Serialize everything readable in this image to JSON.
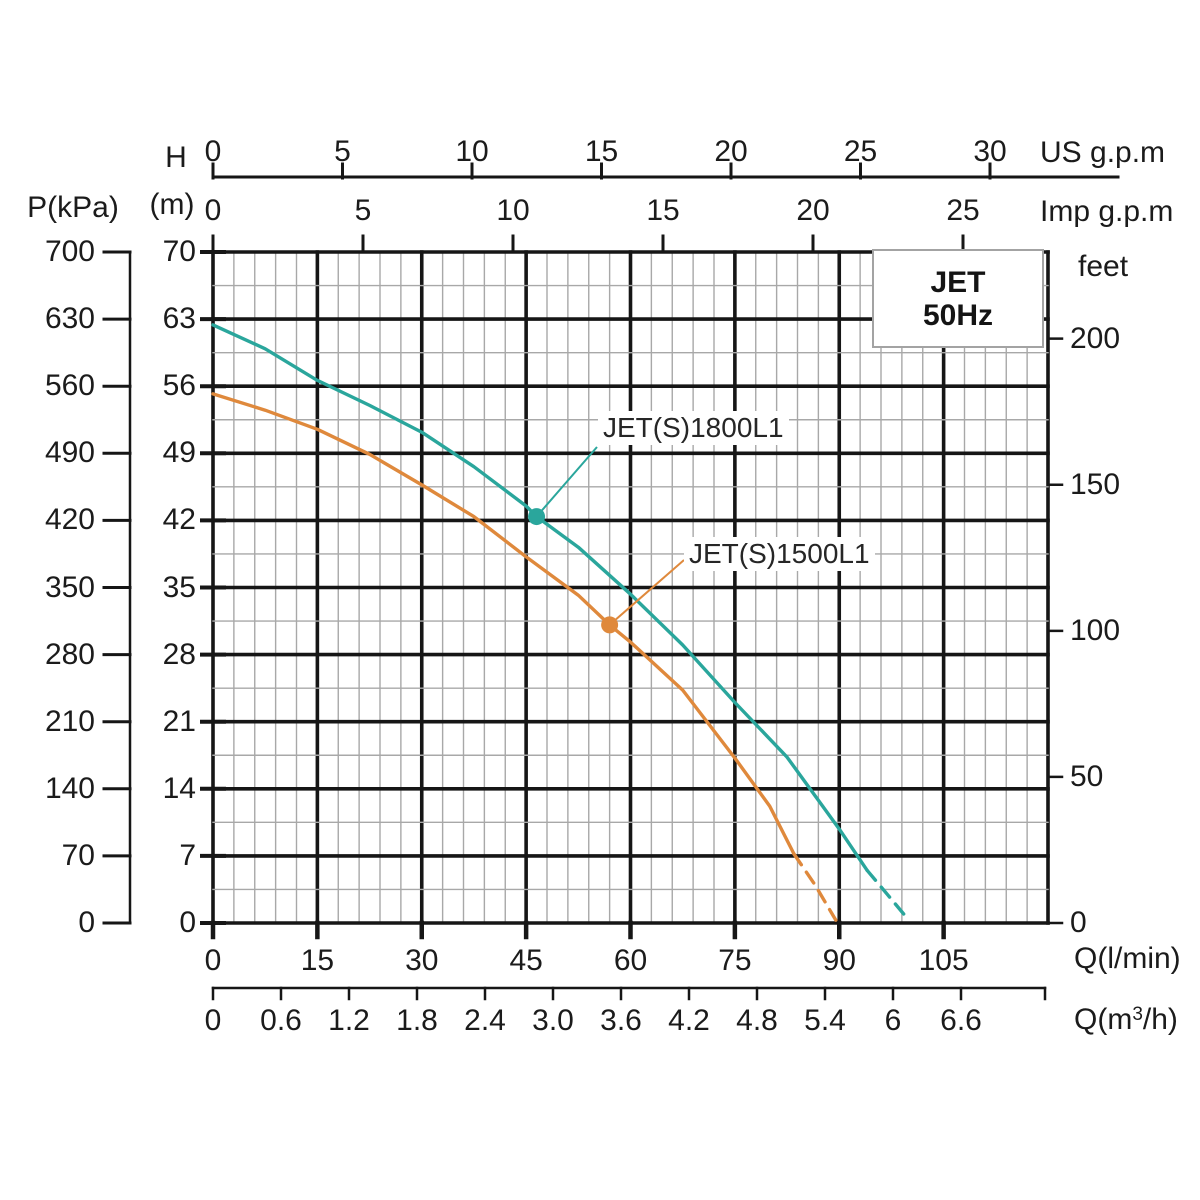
{
  "title_box": {
    "model": "JET",
    "frequency": "50Hz"
  },
  "axis_labels": {
    "us_gpm": "US g.p.m",
    "imp_gpm": "Imp g.p.m",
    "feet": "feet",
    "flow_lmin": "Q(l/min)",
    "flow_m3h_pre": "Q(m",
    "flow_m3h_sup": "3",
    "flow_m3h_post": "/h)",
    "head_letter": "H",
    "head_unit": "(m)",
    "pressure": "P(kPa)"
  },
  "chart_data": {
    "type": "line",
    "title": "JET 50Hz pump performance curves",
    "xlabel": "Q(l/min)",
    "ylabel": "H (m)",
    "x_range_lmin": [
      0,
      120
    ],
    "y_range_m": [
      0,
      70
    ],
    "grid": {
      "x_minor_step_lmin": 3,
      "x_major_step_lmin": 15,
      "y_minor_step_m": 3.5,
      "y_major_step_m": 7
    },
    "ticks": {
      "flow_lmin": [
        0,
        15,
        30,
        45,
        60,
        75,
        90,
        105
      ],
      "flow_m3h": [
        "0",
        "0.6",
        "1.2",
        "1.8",
        "2.4",
        "3.0",
        "3.6",
        "4.2",
        "4.8",
        "5.4",
        "6",
        "6.6"
      ],
      "head_m": [
        70,
        63,
        56,
        49,
        42,
        35,
        28,
        21,
        14,
        7,
        0
      ],
      "pressure_kpa": [
        700,
        630,
        560,
        490,
        420,
        350,
        280,
        210,
        140,
        70,
        0
      ],
      "feet": [
        200,
        150,
        100,
        50,
        0
      ],
      "us_gpm": [
        0,
        5,
        10,
        15,
        20,
        25,
        30
      ],
      "imp_gpm": [
        0,
        5,
        10,
        15,
        20,
        25
      ]
    },
    "series": [
      {
        "name": "JET(S)1800L1",
        "color": "#2aa69c",
        "points_q_lmin_h_m": [
          [
            0,
            62.4
          ],
          [
            7.5,
            59.9
          ],
          [
            15,
            56.6
          ],
          [
            22.5,
            54.0
          ],
          [
            30,
            51.2
          ],
          [
            37.5,
            47.6
          ],
          [
            45,
            43.5
          ],
          [
            46.5,
            42.4
          ],
          [
            52.5,
            39.2
          ],
          [
            60,
            34.3
          ],
          [
            67.5,
            29.0
          ],
          [
            75,
            23.0
          ],
          [
            82.5,
            17.3
          ],
          [
            90,
            9.8
          ],
          [
            94,
            5.5
          ]
        ],
        "dashed_tail_q_lmin_h_m": [
          [
            94,
            5.5
          ],
          [
            97,
            2.9
          ],
          [
            100,
            0.3
          ]
        ],
        "duty_point_q_lmin_h_m": [
          46.5,
          42.4
        ]
      },
      {
        "name": "JET(S)1500L1",
        "color": "#df893c",
        "points_q_lmin_h_m": [
          [
            0,
            55.2
          ],
          [
            7.5,
            53.5
          ],
          [
            15,
            51.5
          ],
          [
            22.5,
            48.9
          ],
          [
            30,
            45.7
          ],
          [
            37.5,
            42.4
          ],
          [
            45,
            38.2
          ],
          [
            52.5,
            34.2
          ],
          [
            57,
            31.1
          ],
          [
            60,
            29.3
          ],
          [
            67.5,
            24.3
          ],
          [
            75,
            17.2
          ],
          [
            80,
            12.2
          ],
          [
            83.5,
            7.2
          ]
        ],
        "dashed_tail_q_lmin_h_m": [
          [
            83.5,
            7.2
          ],
          [
            86.5,
            4.0
          ],
          [
            89.5,
            0.3
          ]
        ],
        "duty_point_q_lmin_h_m": [
          57,
          31.1
        ]
      }
    ],
    "colors": {
      "grid_major": "#161616",
      "grid_minor": "#a8a8a8",
      "axis": "#161616",
      "text": "#1b1b1b"
    }
  }
}
